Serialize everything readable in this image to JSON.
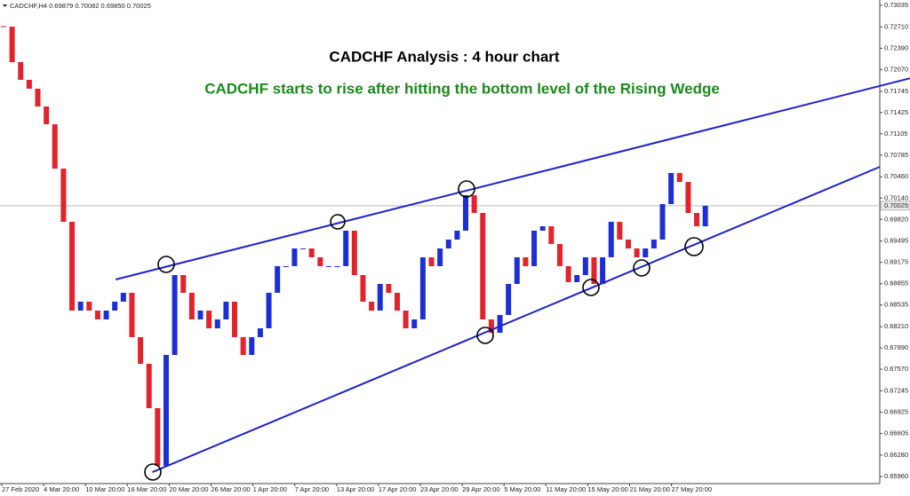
{
  "chart_data": {
    "type": "candlestick",
    "symbol_info": "CADCHF,H4  0.69879 0.70082 0.69850 0.70025",
    "title": "CADCHF Analysis : 4 hour chart",
    "subtitle": "CADCHF starts to rise after hitting the bottom level of the Rising Wedge",
    "x_labels": [
      "27 Feb 2020",
      "4 Mar 20:00",
      "10 Mar 20:00",
      "16 Mar 20:00",
      "20 Mar 20:00",
      "26 Mar 20:00",
      "1 Apr 20:00",
      "7 Apr 20:00",
      "13 Apr 20:00",
      "17 Apr 20:00",
      "23 Apr 20:00",
      "29 Apr 20:00",
      "5 May 20:00",
      "11 May 20:00",
      "15 May 20:00",
      "21 May 20:00",
      "27 May 20:00"
    ],
    "close": [
      0.72715,
      0.72182,
      0.71916,
      0.71783,
      0.71516,
      0.7125,
      0.70583,
      0.69784,
      0.68451,
      0.68585,
      0.68451,
      0.68318,
      0.68451,
      0.68585,
      0.68718,
      0.68052,
      0.67652,
      0.66986,
      0.6612,
      0.67785,
      0.68984,
      0.68718,
      0.68318,
      0.68451,
      0.68185,
      0.68318,
      0.68585,
      0.68052,
      0.67785,
      0.68052,
      0.68185,
      0.68718,
      0.69118,
      0.69118,
      0.69384,
      0.69384,
      0.69251,
      0.69118,
      0.69118,
      0.69118,
      0.69651,
      0.68984,
      0.68585,
      0.68451,
      0.68851,
      0.68718,
      0.68451,
      0.68185,
      0.68318,
      0.69251,
      0.69118,
      0.69384,
      0.69517,
      0.69651,
      0.70184,
      0.69917,
      0.68318,
      0.68118,
      0.68385,
      0.68851,
      0.69251,
      0.69118,
      0.69651,
      0.69717,
      0.69451,
      0.69118,
      0.68878,
      0.68984,
      0.69251,
      0.68851,
      0.69251,
      0.69784,
      0.69517,
      0.69384,
      0.69251,
      0.69384,
      0.69517,
      0.7005,
      0.70517,
      0.70383,
      0.69917,
      0.69717,
      0.70025
    ],
    "up_color": "#1c2fd6",
    "down_color": "#e4222b",
    "trendlines": [
      {
        "x": [
          13.1,
          106
        ],
        "y": [
          0.68918,
          0.71942
        ],
        "color": "#1f23c8"
      },
      {
        "x": [
          17.4,
          102.4
        ],
        "y": [
          0.66026,
          0.7061
        ],
        "color": "#1f23c8"
      }
    ],
    "current_price": {
      "value": 0.70025,
      "label": "0.70025"
    },
    "ylim": [
      0.65853,
      0.73115
    ],
    "yticks": [
      {
        "value": 0.73035,
        "label": "0.73035"
      },
      {
        "value": 0.7271,
        "label": "0.72710"
      },
      {
        "value": 0.7239,
        "label": "0.72390"
      },
      {
        "value": 0.7207,
        "label": "0.72070"
      },
      {
        "value": 0.71745,
        "label": "0.71745"
      },
      {
        "value": 0.71425,
        "label": "0.71425"
      },
      {
        "value": 0.71105,
        "label": "0.71105"
      },
      {
        "value": 0.70785,
        "label": "0.70785"
      },
      {
        "value": 0.7046,
        "label": "0.70460"
      },
      {
        "value": 0.7014,
        "label": "0.70140"
      },
      {
        "value": 0.6982,
        "label": "0.69820"
      },
      {
        "value": 0.69495,
        "label": "0.69495"
      },
      {
        "value": 0.69175,
        "label": "0.69175"
      },
      {
        "value": 0.68855,
        "label": "0.68855"
      },
      {
        "value": 0.68535,
        "label": "0.68535"
      },
      {
        "value": 0.6821,
        "label": "0.68210"
      },
      {
        "value": 0.6789,
        "label": "0.67890"
      },
      {
        "value": 0.6757,
        "label": "0.67570"
      },
      {
        "value": 0.67245,
        "label": "0.67245"
      },
      {
        "value": 0.66925,
        "label": "0.66925"
      },
      {
        "value": 0.66605,
        "label": "0.66605"
      },
      {
        "value": 0.6628,
        "label": "0.66280"
      },
      {
        "value": 0.6596,
        "label": "0.65960"
      }
    ]
  }
}
